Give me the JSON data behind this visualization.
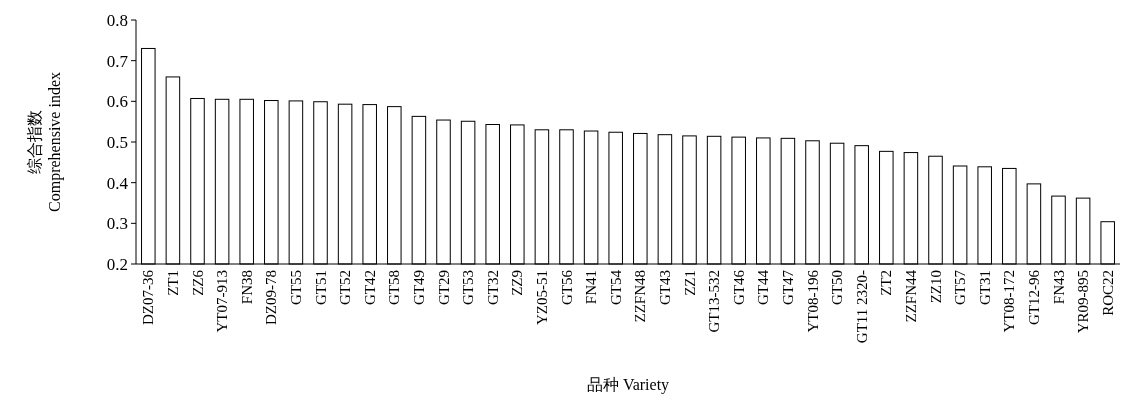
{
  "chart_data": {
    "type": "bar",
    "xlabel": "品种 Variety",
    "ylabel": "综合指数\nComprehensive index",
    "categories": [
      "DZ07-36",
      "ZT1",
      "ZZ6",
      "YT07-913",
      "FN38",
      "DZ09-78",
      "GT55",
      "GT51",
      "GT52",
      "GT42",
      "GT58",
      "GT49",
      "GT29",
      "GT53",
      "GT32",
      "ZZ9",
      "YZ05-51",
      "GT56",
      "FN41",
      "GT54",
      "ZZFN48",
      "GT43",
      "ZZ1",
      "GT13-532",
      "GT46",
      "GT44",
      "GT47",
      "YT08-196",
      "GT50",
      "GT11 2320-",
      "ZT2",
      "ZZFN44",
      "ZZ10",
      "GT57",
      "GT31",
      "YT08-172",
      "GT12-96",
      "FN43",
      "YR09-895",
      "ROC22"
    ],
    "values": [
      0.73,
      0.66,
      0.607,
      0.605,
      0.605,
      0.602,
      0.601,
      0.599,
      0.593,
      0.592,
      0.587,
      0.563,
      0.554,
      0.551,
      0.543,
      0.542,
      0.53,
      0.53,
      0.527,
      0.524,
      0.521,
      0.518,
      0.515,
      0.514,
      0.512,
      0.51,
      0.509,
      0.503,
      0.497,
      0.491,
      0.477,
      0.474,
      0.465,
      0.441,
      0.439,
      0.435,
      0.397,
      0.367,
      0.362,
      0.304
    ],
    "color": "#ffffff",
    "ylim": [
      0.2,
      0.8
    ],
    "yticks": [
      0.2,
      0.3,
      0.4,
      0.5,
      0.6,
      0.7,
      0.8
    ],
    "grid": false
  }
}
